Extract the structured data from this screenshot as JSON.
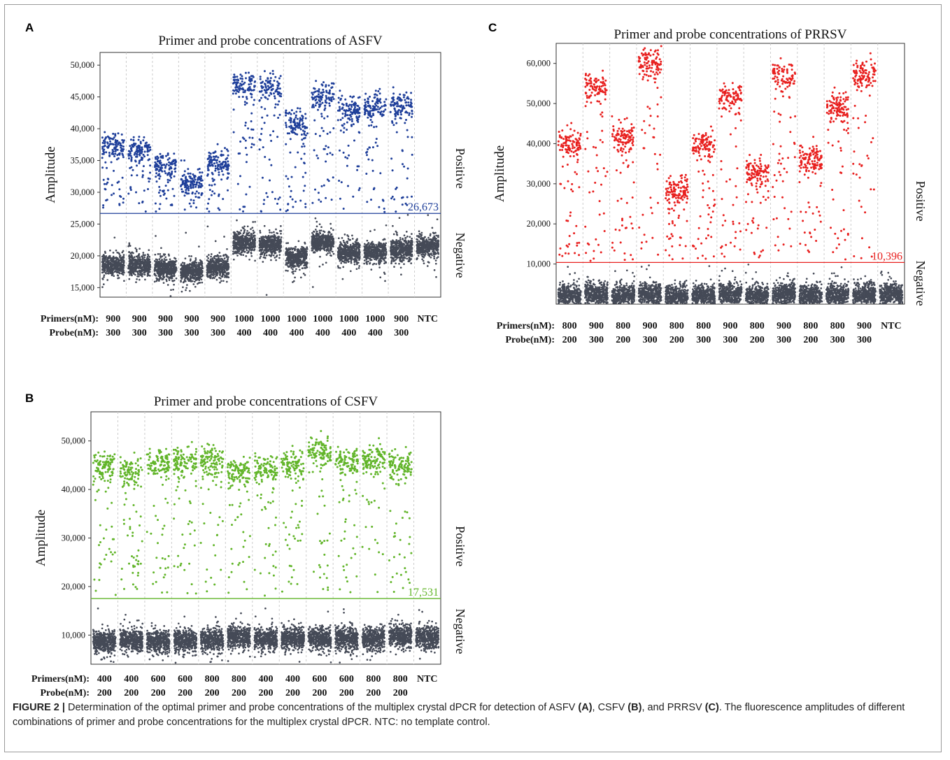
{
  "figure": {
    "panel_letters": [
      "A",
      "B",
      "C"
    ],
    "caption": {
      "label": "FIGURE 2 |",
      "p1": " Determination of the optimal primer and probe concentrations of the multiplex crystal dPCR for detection of ASFV ",
      "a": "(A)",
      "p2": ", CSFV ",
      "b": "(B)",
      "p3": ", and PRRSV ",
      "c": "(C)",
      "p4": ". The fluorescence amplitudes of different combinations of primer and probe concentrations for the multiplex crystal dPCR. NTC: no template control."
    }
  },
  "chart_data": [
    {
      "type": "scatter",
      "panel": "A",
      "title": "Primer and probe concentrations of ASFV",
      "ylabel": "Amplitude",
      "ylim": [
        13500,
        52000
      ],
      "yticks": [
        15000,
        20000,
        25000,
        30000,
        35000,
        40000,
        45000,
        50000
      ],
      "ytick_labels": [
        "15,000",
        "20,000",
        "25,000",
        "30,000",
        "35,000",
        "40,000",
        "45,000",
        "50,000"
      ],
      "threshold": 26673,
      "threshold_label": "26,673",
      "side_labels": {
        "positive": "Positive",
        "negative": "Negative"
      },
      "row_titles": [
        "Primers(nM):",
        "Probe(nM):"
      ],
      "primers": [
        "900",
        "900",
        "900",
        "900",
        "900",
        "1000",
        "1000",
        "1000",
        "1000",
        "1000",
        "1000",
        "900",
        "NTC"
      ],
      "probes": [
        "300",
        "300",
        "300",
        "300",
        "300",
        "400",
        "400",
        "400",
        "400",
        "400",
        "400",
        "300",
        ""
      ],
      "wells_approx": [
        {
          "positive": 37000,
          "negative": 18500
        },
        {
          "positive": 36500,
          "negative": 18500
        },
        {
          "positive": 34000,
          "negative": 18000
        },
        {
          "positive": 31500,
          "negative": 17500
        },
        {
          "positive": 34500,
          "negative": 18200
        },
        {
          "positive": 47000,
          "negative": 22000
        },
        {
          "positive": 46500,
          "negative": 21800
        },
        {
          "positive": 40500,
          "negative": 19800
        },
        {
          "positive": 45000,
          "negative": 22200
        },
        {
          "positive": 43000,
          "negative": 20500
        },
        {
          "positive": 43500,
          "negative": 20500
        },
        {
          "positive": 43500,
          "negative": 21000
        },
        {
          "positive": null,
          "negative": 21500
        }
      ],
      "colors": {
        "positive": "#1f3f9a",
        "negative": "#454a57",
        "threshold": "#1f3f9a"
      }
    },
    {
      "type": "scatter",
      "panel": "B",
      "title": "Primer and probe concentrations of CSFV",
      "ylabel": "Amplitude",
      "ylim": [
        4000,
        56000
      ],
      "yticks": [
        10000,
        20000,
        30000,
        40000,
        50000
      ],
      "ytick_labels": [
        "10,000",
        "20,000",
        "30,000",
        "40,000",
        "50,000"
      ],
      "threshold": 17531,
      "threshold_label": "17,531",
      "side_labels": {
        "positive": "Positive",
        "negative": "Negative"
      },
      "row_titles": [
        "Primers(nM):",
        "Probe(nM):"
      ],
      "primers": [
        "400",
        "400",
        "600",
        "600",
        "800",
        "800",
        "400",
        "400",
        "600",
        "600",
        "800",
        "800",
        "NTC"
      ],
      "probes": [
        "200",
        "200",
        "200",
        "200",
        "200",
        "200",
        "200",
        "200",
        "200",
        "200",
        "200",
        "200",
        ""
      ],
      "wells_approx": [
        {
          "positive": 44500,
          "negative": 8700
        },
        {
          "positive": 43500,
          "negative": 8800
        },
        {
          "positive": 45500,
          "negative": 8700
        },
        {
          "positive": 45500,
          "negative": 8800
        },
        {
          "positive": 46000,
          "negative": 9000
        },
        {
          "positive": 43500,
          "negative": 9500
        },
        {
          "positive": 44000,
          "negative": 9200
        },
        {
          "positive": 45000,
          "negative": 9300
        },
        {
          "positive": 47500,
          "negative": 9500
        },
        {
          "positive": 45500,
          "negative": 9300
        },
        {
          "positive": 46000,
          "negative": 9300
        },
        {
          "positive": 44500,
          "negative": 9800
        },
        {
          "positive": null,
          "negative": 9500
        }
      ],
      "colors": {
        "positive": "#62b52a",
        "negative": "#454a57",
        "threshold": "#62b52a"
      }
    },
    {
      "type": "scatter",
      "panel": "C",
      "title": "Primer and probe concentrations of PRRSV",
      "ylabel": "Amplitude",
      "ylim": [
        0,
        65000
      ],
      "yticks": [
        10000,
        20000,
        30000,
        40000,
        50000,
        60000
      ],
      "ytick_labels": [
        "10,000",
        "20,000",
        "30,000",
        "40,000",
        "50,000",
        "60,000"
      ],
      "threshold": 10396,
      "threshold_label": "10,396",
      "side_labels": {
        "positive": "Positive",
        "negative": "Negative"
      },
      "row_titles": [
        "Primers(nM):",
        "Probe(nM):"
      ],
      "primers": [
        "800",
        "900",
        "800",
        "900",
        "800",
        "800",
        "900",
        "800",
        "900",
        "800",
        "800",
        "900",
        "NTC"
      ],
      "probes": [
        "200",
        "300",
        "200",
        "300",
        "200",
        "300",
        "300",
        "200",
        "300",
        "200",
        "300",
        "300",
        ""
      ],
      "wells_approx": [
        {
          "positive": 40000,
          "negative": 2000
        },
        {
          "positive": 54000,
          "negative": 2500
        },
        {
          "positive": 41500,
          "negative": 2000
        },
        {
          "positive": 60000,
          "negative": 2500
        },
        {
          "positive": 28000,
          "negative": 1800
        },
        {
          "positive": 39500,
          "negative": 2000
        },
        {
          "positive": 51500,
          "negative": 2300
        },
        {
          "positive": 32500,
          "negative": 2000
        },
        {
          "positive": 57000,
          "negative": 2500
        },
        {
          "positive": 36000,
          "negative": 2000
        },
        {
          "positive": 49000,
          "negative": 2200
        },
        {
          "positive": 57000,
          "negative": 2200
        },
        {
          "positive": null,
          "negative": 2300
        }
      ],
      "colors": {
        "positive": "#e8201f",
        "negative": "#454a57",
        "threshold": "#e8201f"
      }
    }
  ]
}
